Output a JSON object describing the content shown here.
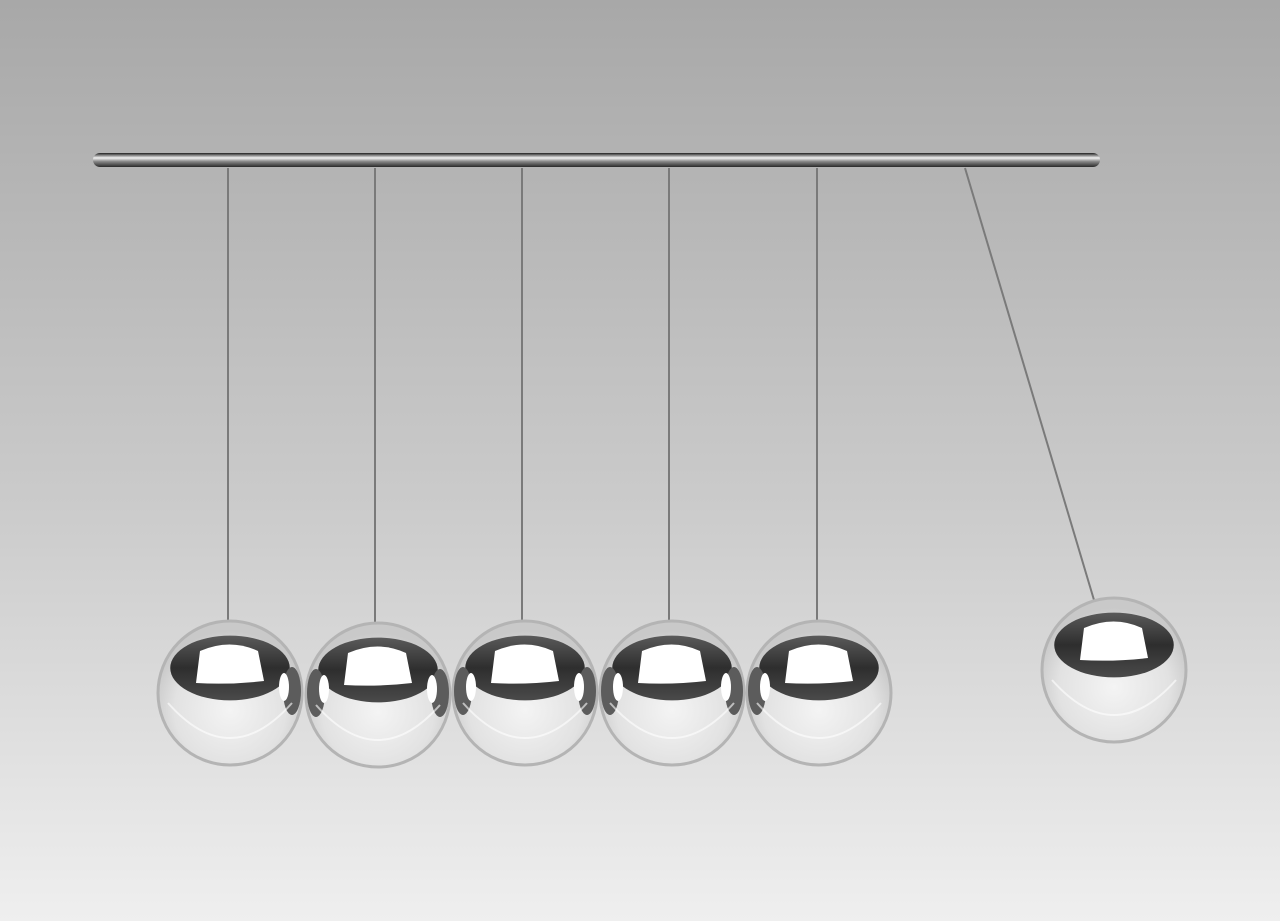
{
  "scene": {
    "subject": "newtons-cradle",
    "ball_count": 6,
    "balls_at_rest": 5,
    "balls_swung_out": 1,
    "colors": {
      "background_top": "#a9a9a9",
      "background_bottom": "#eeeeee",
      "rod": "#3d3d3d",
      "string": "#7a7a7a",
      "ball_highlight": "#ffffff",
      "ball_reflection_dark": "#383838",
      "ball_rim": "#b4b4b4"
    }
  }
}
